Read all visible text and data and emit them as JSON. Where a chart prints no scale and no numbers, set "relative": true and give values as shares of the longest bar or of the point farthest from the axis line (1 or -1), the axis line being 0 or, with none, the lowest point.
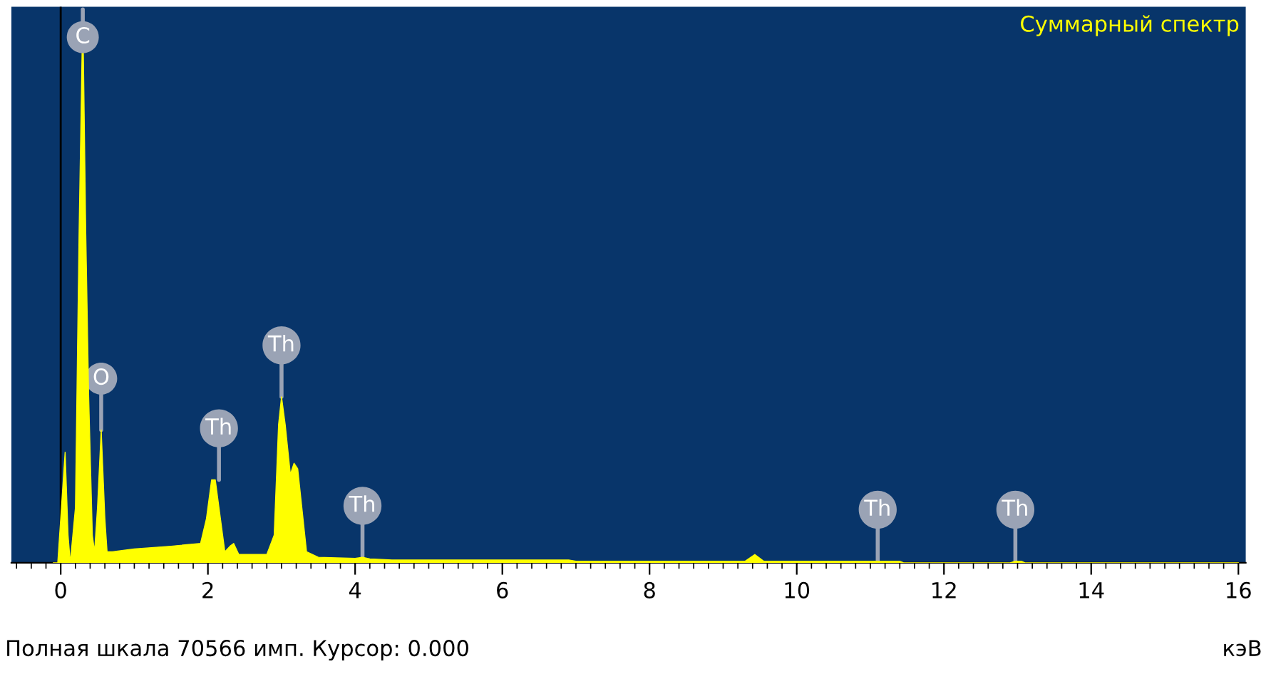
{
  "chart_data": {
    "type": "area",
    "relative": true,
    "title": "Суммарный спектр",
    "xlabel": "кэВ",
    "x": [
      -0.1,
      -0.04,
      0.06,
      0.1,
      0.13,
      0.2,
      0.25,
      0.3,
      0.34,
      0.38,
      0.43,
      0.46,
      0.5,
      0.55,
      0.6,
      0.63,
      0.7,
      1.0,
      1.5,
      1.9,
      1.98,
      2.05,
      2.1,
      2.15,
      2.23,
      2.3,
      2.35,
      2.42,
      2.8,
      2.9,
      2.96,
      3.0,
      3.05,
      3.12,
      3.17,
      3.22,
      3.26,
      3.34,
      3.5,
      4.0,
      4.1,
      4.2,
      4.5,
      6.9,
      7.0,
      9.3,
      9.43,
      9.55,
      11.1,
      11.4,
      11.45,
      12.9,
      12.97,
      13.05,
      13.1,
      16.0
    ],
    "series": [
      {
        "color": "#ffff00",
        "values": [
          0,
          0,
          0.2,
          0.05,
          0.0,
          0.1,
          0.6,
          1.0,
          0.6,
          0.3,
          0.05,
          0.02,
          0.1,
          0.24,
          0.08,
          0.02,
          0.02,
          0.025,
          0.03,
          0.035,
          0.08,
          0.15,
          0.15,
          0.1,
          0.02,
          0.03,
          0.035,
          0.015,
          0.015,
          0.05,
          0.25,
          0.3,
          0.25,
          0.16,
          0.18,
          0.17,
          0.12,
          0.02,
          0.01,
          0.008,
          0.01,
          0.007,
          0.005,
          0.005,
          0.003,
          0.003,
          0.015,
          0.003,
          0.003,
          0.003,
          0,
          0,
          0.003,
          0.003,
          0,
          0
        ]
      }
    ],
    "ref_lines": [
      {
        "axis": "x",
        "value": 0,
        "color": "#000000"
      }
    ],
    "xlim": [
      -0.67,
      16.1
    ],
    "xticks": [
      0,
      2,
      4,
      6,
      8,
      10,
      12,
      14,
      16
    ],
    "annotations": [
      {
        "text": "C",
        "x": 0.3,
        "y": 1.0
      },
      {
        "text": "O",
        "x": 0.55,
        "y": 0.24
      },
      {
        "text": "Th",
        "x": 2.15,
        "y": 0.15
      },
      {
        "text": "Th",
        "x": 3.0,
        "y": 0.3
      },
      {
        "text": "Th",
        "x": 4.1,
        "y": 0.01
      },
      {
        "text": "Th",
        "x": 11.1,
        "y": 0.003
      },
      {
        "text": "Th",
        "x": 12.97,
        "y": 0.003
      },
      "Полная шкала 70566 имп. Курсор: 0.000"
    ],
    "grid": false,
    "legend": false
  }
}
